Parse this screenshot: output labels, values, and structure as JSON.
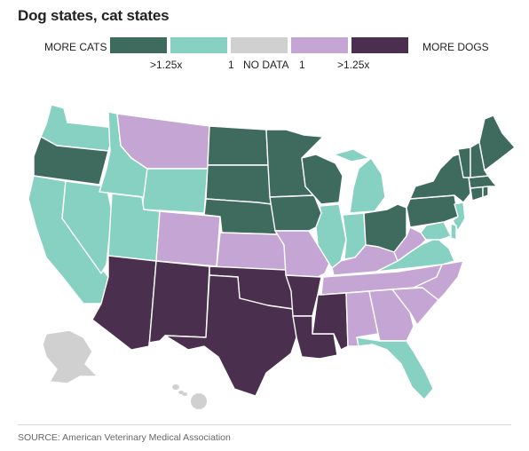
{
  "title": "Dog states, cat states",
  "legend": {
    "left_label": "MORE CATS",
    "right_label": "MORE DOGS",
    "ticks": [
      ">1.25x",
      "1",
      "NO DATA",
      "1",
      ">1.25x"
    ],
    "categories": [
      {
        "key": "cats_strong",
        "color": "#3e6b5d"
      },
      {
        "key": "cats",
        "color": "#86d1c1"
      },
      {
        "key": "nodata",
        "color": "#d0d0d0"
      },
      {
        "key": "dogs",
        "color": "#c4a5d4"
      },
      {
        "key": "dogs_strong",
        "color": "#4b2f4e"
      }
    ]
  },
  "map_data": {
    "states": [
      {
        "name": "Washington",
        "category": "cats"
      },
      {
        "name": "Oregon",
        "category": "cats_strong"
      },
      {
        "name": "California",
        "category": "cats"
      },
      {
        "name": "Idaho",
        "category": "cats"
      },
      {
        "name": "Nevada",
        "category": "cats"
      },
      {
        "name": "Montana",
        "category": "dogs"
      },
      {
        "name": "Wyoming",
        "category": "cats"
      },
      {
        "name": "Utah",
        "category": "cats"
      },
      {
        "name": "Arizona",
        "category": "dogs_strong"
      },
      {
        "name": "Colorado",
        "category": "dogs"
      },
      {
        "name": "New Mexico",
        "category": "dogs_strong"
      },
      {
        "name": "North Dakota",
        "category": "cats_strong"
      },
      {
        "name": "South Dakota",
        "category": "cats_strong"
      },
      {
        "name": "Nebraska",
        "category": "cats_strong"
      },
      {
        "name": "Kansas",
        "category": "dogs"
      },
      {
        "name": "Oklahoma",
        "category": "dogs_strong"
      },
      {
        "name": "Texas",
        "category": "dogs_strong"
      },
      {
        "name": "Minnesota",
        "category": "cats_strong"
      },
      {
        "name": "Iowa",
        "category": "cats_strong"
      },
      {
        "name": "Missouri",
        "category": "dogs"
      },
      {
        "name": "Arkansas",
        "category": "dogs_strong"
      },
      {
        "name": "Louisiana",
        "category": "dogs_strong"
      },
      {
        "name": "Wisconsin",
        "category": "cats_strong"
      },
      {
        "name": "Illinois",
        "category": "cats"
      },
      {
        "name": "Michigan",
        "category": "cats"
      },
      {
        "name": "Indiana",
        "category": "cats"
      },
      {
        "name": "Ohio",
        "category": "cats_strong"
      },
      {
        "name": "Kentucky",
        "category": "dogs"
      },
      {
        "name": "Tennessee",
        "category": "dogs"
      },
      {
        "name": "Mississippi",
        "category": "dogs_strong"
      },
      {
        "name": "Alabama",
        "category": "dogs"
      },
      {
        "name": "Georgia",
        "category": "dogs"
      },
      {
        "name": "Florida",
        "category": "cats"
      },
      {
        "name": "South Carolina",
        "category": "dogs"
      },
      {
        "name": "North Carolina",
        "category": "dogs"
      },
      {
        "name": "Virginia",
        "category": "cats"
      },
      {
        "name": "West Virginia",
        "category": "dogs"
      },
      {
        "name": "Maryland",
        "category": "cats"
      },
      {
        "name": "Delaware",
        "category": "cats"
      },
      {
        "name": "New Jersey",
        "category": "cats"
      },
      {
        "name": "Pennsylvania",
        "category": "cats_strong"
      },
      {
        "name": "New York",
        "category": "cats_strong"
      },
      {
        "name": "Connecticut",
        "category": "cats_strong"
      },
      {
        "name": "Rhode Island",
        "category": "cats_strong"
      },
      {
        "name": "Massachusetts",
        "category": "cats_strong"
      },
      {
        "name": "Vermont",
        "category": "cats_strong"
      },
      {
        "name": "New Hampshire",
        "category": "cats_strong"
      },
      {
        "name": "Maine",
        "category": "cats_strong"
      },
      {
        "name": "Alaska",
        "category": "nodata"
      },
      {
        "name": "Hawaii",
        "category": "nodata"
      }
    ]
  },
  "source": "SOURCE: American Veterinary Medical Association"
}
